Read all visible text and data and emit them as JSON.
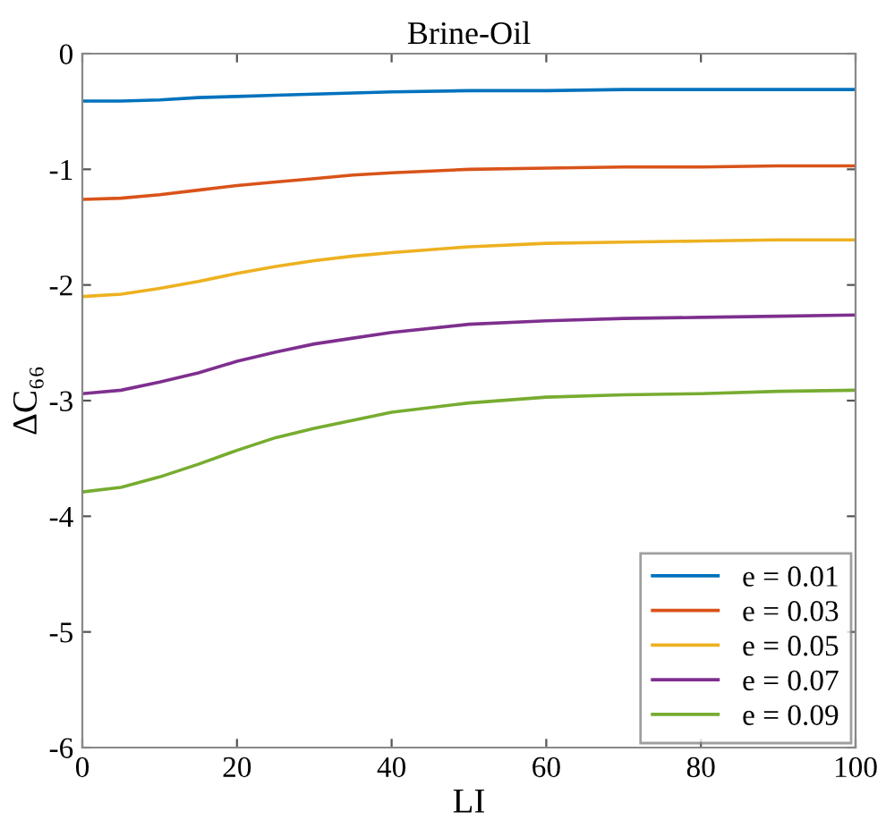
{
  "chart_data": {
    "type": "line",
    "title": "Brine-Oil",
    "xlabel": "LI",
    "ylabel": "ΔC₆₆",
    "x": [
      0,
      5,
      10,
      15,
      20,
      25,
      30,
      35,
      40,
      50,
      60,
      70,
      80,
      90,
      100
    ],
    "series": [
      {
        "name": "e = 0.01",
        "color": "#0072bd",
        "values": [
          -0.41,
          -0.41,
          -0.4,
          -0.38,
          -0.37,
          -0.36,
          -0.35,
          -0.34,
          -0.33,
          -0.32,
          -0.32,
          -0.31,
          -0.31,
          -0.31,
          -0.31
        ]
      },
      {
        "name": "e = 0.03",
        "color": "#d95319",
        "values": [
          -1.26,
          -1.25,
          -1.22,
          -1.18,
          -1.14,
          -1.11,
          -1.08,
          -1.05,
          -1.03,
          -1.0,
          -0.99,
          -0.98,
          -0.98,
          -0.97,
          -0.97
        ]
      },
      {
        "name": "e = 0.05",
        "color": "#edb120",
        "values": [
          -2.1,
          -2.08,
          -2.03,
          -1.97,
          -1.9,
          -1.84,
          -1.79,
          -1.75,
          -1.72,
          -1.67,
          -1.64,
          -1.63,
          -1.62,
          -1.61,
          -1.61
        ]
      },
      {
        "name": "e = 0.07",
        "color": "#7e2f8e",
        "values": [
          -2.94,
          -2.91,
          -2.84,
          -2.76,
          -2.66,
          -2.58,
          -2.51,
          -2.46,
          -2.41,
          -2.34,
          -2.31,
          -2.29,
          -2.28,
          -2.27,
          -2.26
        ]
      },
      {
        "name": "e = 0.09",
        "color": "#77ac30",
        "values": [
          -3.79,
          -3.75,
          -3.66,
          -3.55,
          -3.43,
          -3.32,
          -3.24,
          -3.17,
          -3.1,
          -3.02,
          -2.97,
          -2.95,
          -2.94,
          -2.92,
          -2.91
        ]
      }
    ],
    "xlim": [
      0,
      100
    ],
    "xticks": [
      0,
      20,
      40,
      60,
      80,
      100
    ],
    "ylim": [
      -6,
      0
    ],
    "yticks": [
      -6,
      -5,
      -4,
      -3,
      -2,
      -1,
      0
    ],
    "grid": false,
    "legend": "bottom right",
    "marker": "none",
    "line_style": "solid"
  }
}
